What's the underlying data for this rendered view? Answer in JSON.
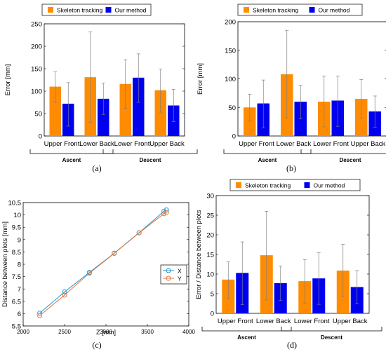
{
  "colors": {
    "orange": "#ff8c00",
    "blue": "#0000ee",
    "err": "#7f7f7f",
    "x_line": "#1f9bd7",
    "y_line": "#e8743b"
  },
  "chart_data": [
    {
      "id": "a",
      "type": "bar",
      "panel_label": "(a)",
      "ylabel": "Error [mm]",
      "ylim": [
        0,
        250
      ],
      "yticks": [
        "0",
        "50",
        "100",
        "150",
        "200",
        "250"
      ],
      "categories": [
        "Upper Front",
        "Lower Back",
        "Lower Front",
        "Upper Back"
      ],
      "groups": [
        "Ascent",
        "Descent"
      ],
      "legend": [
        "Skeleton tracking",
        "Our method"
      ],
      "series": [
        {
          "name": "Skeleton tracking",
          "values": [
            110,
            131,
            116,
            102
          ],
          "err_low": [
            75,
            30,
            62,
            53
          ],
          "err_high": [
            143,
            232,
            170,
            149
          ]
        },
        {
          "name": "Our method",
          "values": [
            72,
            83,
            130,
            68
          ],
          "err_low": [
            22,
            48,
            75,
            32
          ],
          "err_high": [
            119,
            118,
            183,
            104
          ]
        }
      ]
    },
    {
      "id": "b",
      "type": "bar",
      "panel_label": "(b)",
      "ylabel": "Error [mm]",
      "ylim": [
        0,
        200
      ],
      "yticks": [
        "0",
        "50",
        "100",
        "150",
        "200"
      ],
      "categories": [
        "Upper Front",
        "Lower Back",
        "Lower Front",
        "Upper Back"
      ],
      "groups": [
        "Ascent",
        "Descent"
      ],
      "legend": [
        "Skeleton tracking",
        "Our method"
      ],
      "series": [
        {
          "name": "Skeleton tracking",
          "values": [
            50,
            108,
            60,
            65
          ],
          "err_low": [
            26,
            32,
            16,
            31
          ],
          "err_high": [
            73,
            185,
            105,
            99
          ]
        },
        {
          "name": "Our method",
          "values": [
            57,
            60,
            62,
            43
          ],
          "err_low": [
            14,
            30,
            17,
            15
          ],
          "err_high": [
            98,
            89,
            105,
            70
          ]
        }
      ]
    },
    {
      "id": "c",
      "type": "line",
      "panel_label": "(c)",
      "xlabel": "Z [mm]",
      "ylabel": "Distance between plots [mm]",
      "xlim": [
        2000,
        4000
      ],
      "ylim": [
        5.5,
        10.5
      ],
      "xticks": [
        "2000",
        "2500",
        "3000",
        "3500",
        "4000"
      ],
      "yticks": [
        "5.5",
        "6",
        "6.5",
        "7",
        "7.5",
        "8",
        "8.5",
        "9",
        "9.5",
        "10",
        "10.5"
      ],
      "legend": [
        "X",
        "Y"
      ],
      "series": [
        {
          "name": "X",
          "x": [
            2200,
            2500,
            2800,
            3100,
            3400,
            3700,
            3730
          ],
          "y": [
            6.02,
            6.88,
            7.67,
            8.45,
            9.28,
            10.15,
            10.2
          ]
        },
        {
          "name": "Y",
          "x": [
            2200,
            2500,
            2800,
            3100,
            3400,
            3700,
            3730
          ],
          "y": [
            5.92,
            6.75,
            7.64,
            8.44,
            9.27,
            10.05,
            10.1
          ]
        }
      ]
    },
    {
      "id": "d",
      "type": "bar",
      "panel_label": "(d)",
      "ylabel": "Error / Distance between plots",
      "ylim": [
        0,
        30
      ],
      "yticks": [
        "0",
        "5",
        "10",
        "15",
        "20",
        "25",
        "30"
      ],
      "categories": [
        "Upper Front",
        "Lower Back",
        "Lower Front",
        "Upper Back"
      ],
      "groups": [
        "Ascent",
        "Descent"
      ],
      "legend": [
        "Skeleton tracking",
        "Our method"
      ],
      "series": [
        {
          "name": "Skeleton tracking",
          "values": [
            8.6,
            14.8,
            8.2,
            10.9
          ],
          "err_low": [
            3.8,
            3.4,
            2.6,
            4.2
          ],
          "err_high": [
            13.1,
            26.0,
            13.7,
            17.6
          ]
        },
        {
          "name": "Our method",
          "values": [
            10.3,
            7.7,
            8.9,
            6.7
          ],
          "err_low": [
            2.2,
            3.3,
            2.3,
            2.4
          ],
          "err_high": [
            18.2,
            12.0,
            15.5,
            10.9
          ]
        }
      ]
    }
  ]
}
